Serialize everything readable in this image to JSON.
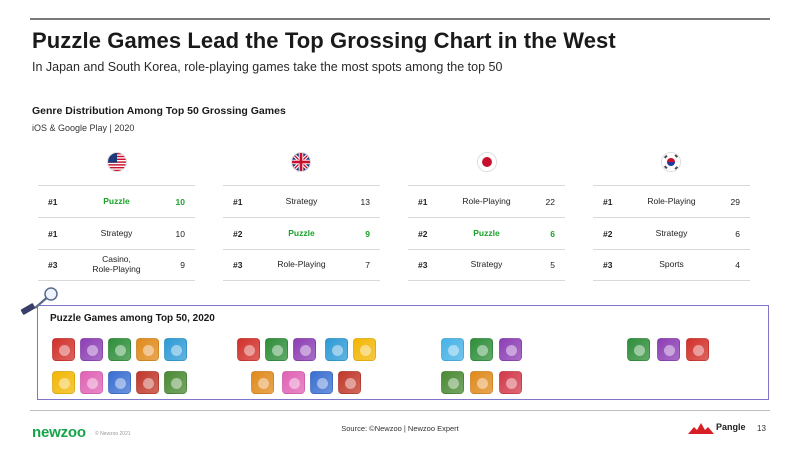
{
  "header": {
    "title": "Puzzle Games Lead the Top Grossing Chart in the West",
    "subtitle": "In Japan and South Korea, role-playing games take the most spots among the top 50"
  },
  "section": {
    "title": "Genre Distribution Among Top 50 Grossing Games",
    "subtitle": "iOS & Google Play | 2020"
  },
  "tables": [
    {
      "country_icon": "us-flag-icon",
      "rows": [
        {
          "rank": "#1",
          "genre": "Puzzle",
          "count": "10",
          "highlight": true
        },
        {
          "rank": "#1",
          "genre": "Strategy",
          "count": "10",
          "highlight": false
        },
        {
          "rank": "#3",
          "genre": "Casino,",
          "genre2": "Role-Playing",
          "count": "9",
          "highlight": false
        }
      ]
    },
    {
      "country_icon": "uk-flag-icon",
      "rows": [
        {
          "rank": "#1",
          "genre": "Strategy",
          "count": "13",
          "highlight": false
        },
        {
          "rank": "#2",
          "genre": "Puzzle",
          "count": "9",
          "highlight": true
        },
        {
          "rank": "#3",
          "genre": "Role-Playing",
          "count": "7",
          "highlight": false
        }
      ]
    },
    {
      "country_icon": "japan-flag-icon",
      "rows": [
        {
          "rank": "#1",
          "genre": "Role-Playing",
          "count": "22",
          "highlight": false
        },
        {
          "rank": "#2",
          "genre": "Puzzle",
          "count": "6",
          "highlight": true
        },
        {
          "rank": "#3",
          "genre": "Strategy",
          "count": "5",
          "highlight": false
        }
      ]
    },
    {
      "country_icon": "south-korea-flag-icon",
      "rows": [
        {
          "rank": "#1",
          "genre": "Role-Playing",
          "count": "29",
          "highlight": false
        },
        {
          "rank": "#2",
          "genre": "Strategy",
          "count": "6",
          "highlight": false
        },
        {
          "rank": "#3",
          "genre": "Sports",
          "count": "4",
          "highlight": false
        }
      ]
    }
  ],
  "puzzle": {
    "title": "Puzzle Games among Top 50, 2020",
    "icon_colors": {
      "us": [
        [
          "#d2312b",
          "#8d3fb5",
          "#2f8f3a",
          "#e08a1c",
          "#2e9bd6"
        ],
        [
          "#f2b705",
          "#e063b5",
          "#3a6fd1",
          "#c0392b",
          "#4a8a34"
        ]
      ],
      "uk": [
        [
          "#d2312b",
          "#2f8f3a",
          "#8d3fb5",
          "#2e9bd6",
          "#f2b705"
        ],
        [
          "#e08a1c",
          "#e063b5",
          "#3a6fd1",
          "#c0392b"
        ]
      ],
      "jp": [
        [
          "#46b3e6",
          "#2f8f3a",
          "#8d3fb5"
        ],
        [
          "#4a8a34",
          "#e08a1c",
          "#d23a4a"
        ]
      ],
      "kr": [
        [
          "#2f8f3a",
          "#8d3fb5",
          "#d2312b"
        ]
      ]
    }
  },
  "footer": {
    "logo": "newzoo",
    "copyright": "© Newzoo 2021",
    "source": "Source: ©Newzoo | Newzoo Expert",
    "partner": "Pangle",
    "page": "13"
  }
}
